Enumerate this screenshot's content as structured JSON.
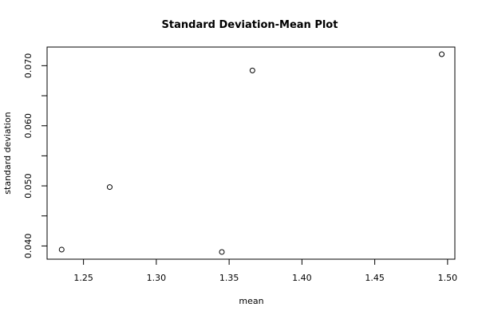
{
  "chart_data": {
    "type": "scatter",
    "title": "Standard Deviation-Mean Plot",
    "xlabel": "mean",
    "ylabel": "standard deviation",
    "xlim": [
      1.225,
      1.505
    ],
    "ylim": [
      0.0378,
      0.0731
    ],
    "xticks": [
      1.25,
      1.3,
      1.35,
      1.4,
      1.45,
      1.5
    ],
    "xtick_labels": [
      "1.25",
      "1.30",
      "1.35",
      "1.40",
      "1.45",
      "1.50"
    ],
    "yticks": [
      0.04,
      0.045,
      0.05,
      0.055,
      0.06,
      0.065,
      0.07
    ],
    "ytick_labels": [
      "0.040",
      "",
      "0.050",
      "",
      "0.060",
      "",
      "0.070"
    ],
    "points": [
      {
        "x": 1.235,
        "y": 0.0394
      },
      {
        "x": 1.268,
        "y": 0.0498
      },
      {
        "x": 1.345,
        "y": 0.039
      },
      {
        "x": 1.366,
        "y": 0.0692
      },
      {
        "x": 1.496,
        "y": 0.0719
      }
    ],
    "grid": false,
    "marker": "open-circle"
  }
}
